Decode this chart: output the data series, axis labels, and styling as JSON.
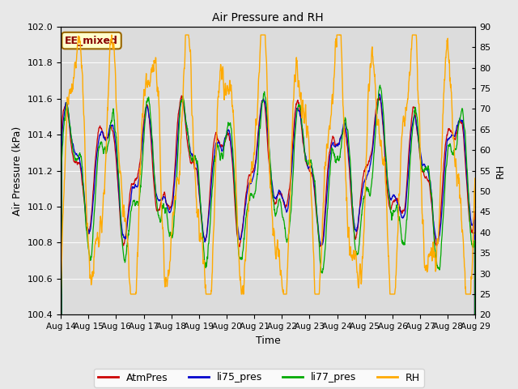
{
  "title": "Air Pressure and RH",
  "xlabel": "Time",
  "ylabel_left": "Air Pressure (kPa)",
  "ylabel_right": "RH",
  "annotation": "EE_mixed",
  "ylim_left": [
    100.4,
    102.0
  ],
  "ylim_right": [
    20,
    90
  ],
  "yticks_left": [
    100.4,
    100.6,
    100.8,
    101.0,
    101.2,
    101.4,
    101.6,
    101.8,
    102.0
  ],
  "yticks_right": [
    20,
    25,
    30,
    35,
    40,
    45,
    50,
    55,
    60,
    65,
    70,
    75,
    80,
    85,
    90
  ],
  "colors": {
    "AtmPres": "#cc0000",
    "li75_pres": "#0000cc",
    "li77_pres": "#00aa00",
    "RH": "#ffaa00"
  },
  "legend_labels": [
    "AtmPres",
    "li75_pres",
    "li77_pres",
    "RH"
  ],
  "background_color": "#e8e8e8",
  "plot_bg_color": "#dcdcdc",
  "annotation_bg": "#ffffcc",
  "annotation_border": "#996600",
  "annotation_text_color": "#880000",
  "n_points": 1500,
  "seed": 42
}
